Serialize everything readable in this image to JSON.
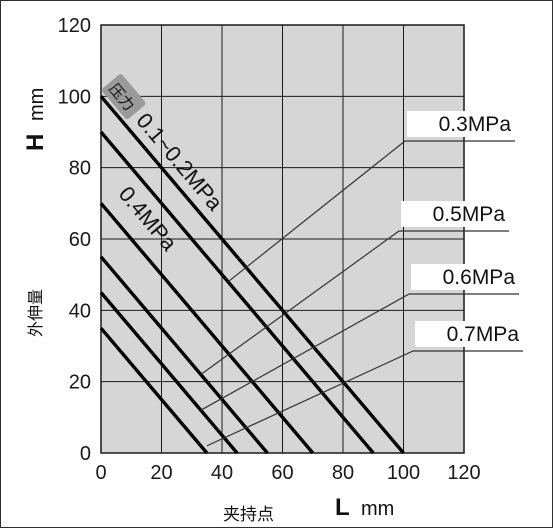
{
  "chart_data": {
    "type": "line",
    "x_axis": {
      "symbol": "L",
      "unit": "mm",
      "label_cn": "夹持点",
      "range": [
        0,
        120
      ],
      "ticks": [
        0,
        20,
        40,
        60,
        80,
        100,
        120
      ]
    },
    "y_axis": {
      "symbol": "H",
      "unit": "mm",
      "label_cn": "外伸量",
      "range": [
        0,
        120
      ],
      "ticks": [
        0,
        20,
        40,
        60,
        80,
        100,
        120
      ]
    },
    "grid": true,
    "pressure_tag": "压力",
    "series": [
      {
        "name": "0.1~0.2MPa",
        "label": "0.1~0.2MPa",
        "points": [
          [
            0,
            100
          ],
          [
            100,
            0
          ]
        ]
      },
      {
        "name": "0.3MPa",
        "label": "0.3MPa",
        "points": [
          [
            0,
            90
          ],
          [
            90,
            0
          ]
        ]
      },
      {
        "name": "0.4MPa",
        "label": "0.4MPa",
        "points": [
          [
            0,
            70
          ],
          [
            70,
            0
          ]
        ]
      },
      {
        "name": "0.5MPa",
        "label": "0.5MPa",
        "points": [
          [
            0,
            55
          ],
          [
            55,
            0
          ]
        ]
      },
      {
        "name": "0.6MPa",
        "label": "0.6MPa",
        "points": [
          [
            0,
            45
          ],
          [
            45,
            0
          ]
        ]
      },
      {
        "name": "0.7MPa",
        "label": "0.7MPa",
        "points": [
          [
            0,
            35
          ],
          [
            35,
            0
          ]
        ]
      }
    ],
    "callouts": [
      {
        "series": "0.3MPa",
        "anchor": [
          42,
          48
        ]
      },
      {
        "series": "0.5MPa",
        "anchor": [
          33,
          22
        ]
      },
      {
        "series": "0.6MPa",
        "anchor": [
          33,
          12
        ]
      },
      {
        "series": "0.7MPa",
        "anchor": [
          35,
          2
        ]
      }
    ]
  }
}
